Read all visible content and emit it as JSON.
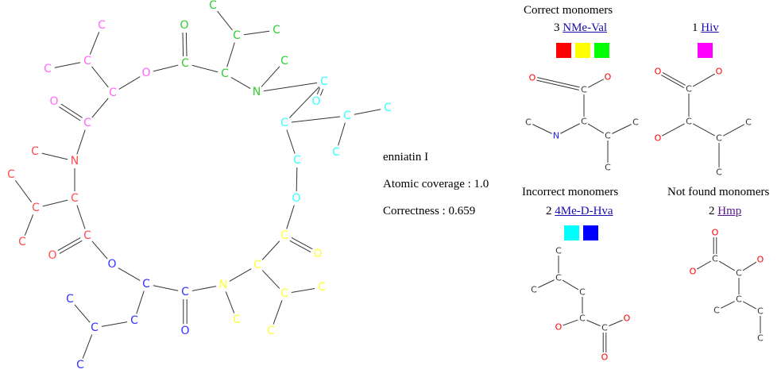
{
  "molecule_name": "enniatin I",
  "atomic_coverage_label": "Atomic coverage : 1.0",
  "correctness_label": "Correctness : 0.659",
  "sections": {
    "correct": "Correct monomers",
    "incorrect": "Incorrect monomers",
    "not_found": "Not found monomers"
  },
  "monomers": {
    "nmeval": {
      "count": "3",
      "name": "NMe-Val",
      "swatches": [
        "#ff0000",
        "#ffff00",
        "#00ff00"
      ]
    },
    "hiv": {
      "count": "1",
      "name": "Hiv",
      "swatches": [
        "#ff00ff"
      ]
    },
    "mehva": {
      "count": "2",
      "name": "4Me-D-Hva",
      "swatches": [
        "#00ffff",
        "#0000ff"
      ]
    },
    "hmp": {
      "count": "2",
      "name": "Hmp",
      "swatches": []
    }
  },
  "colors": {
    "red": "#ff4d4d",
    "yellow": "#ffff33",
    "green": "#33cc33",
    "magenta": "#ff66ff",
    "cyan": "#33ffff",
    "blue": "#3333ff",
    "bond": "#333333",
    "N": "#1a1aff",
    "O": "#ff0000"
  }
}
